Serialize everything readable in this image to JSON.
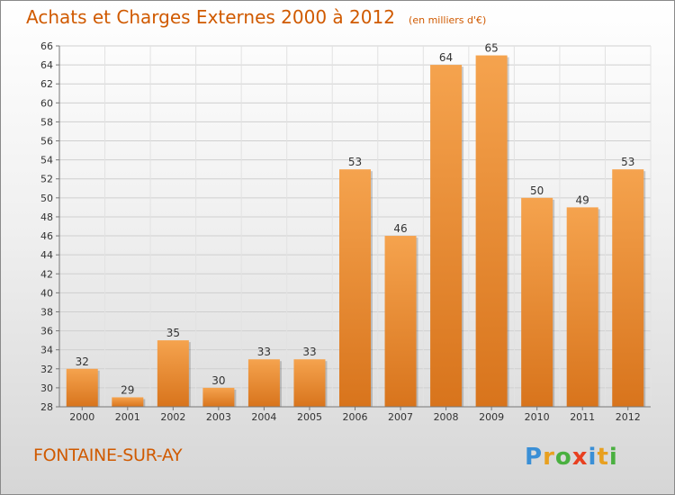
{
  "header": {
    "title": "Achats et Charges Externes 2000 à 2012",
    "subtitle": "(en milliers d'€)"
  },
  "footer": {
    "commune": "FONTAINE-SUR-AY",
    "logo_letters": [
      "P",
      "r",
      "o",
      "x",
      "i",
      "t",
      "i"
    ],
    "logo_colors": [
      "#3a8fd6",
      "#e8a020",
      "#4ab040",
      "#e84020",
      "#3a8fd6",
      "#e8a020",
      "#4ab040"
    ]
  },
  "chart_data": {
    "type": "bar",
    "title": "Achats et Charges Externes 2000 à 2012",
    "subtitle": "(en milliers d'€)",
    "categories": [
      "2000",
      "2001",
      "2002",
      "2003",
      "2004",
      "2005",
      "2006",
      "2007",
      "2008",
      "2009",
      "2010",
      "2011",
      "2012"
    ],
    "values": [
      32,
      29,
      35,
      30,
      33,
      33,
      53,
      46,
      64,
      65,
      50,
      49,
      53
    ],
    "ylim": [
      28,
      66
    ],
    "yticks": [
      28,
      30,
      32,
      34,
      36,
      38,
      40,
      42,
      44,
      46,
      48,
      50,
      52,
      54,
      56,
      58,
      60,
      62,
      64,
      66
    ],
    "grid": true,
    "bar_color_light": "#f5a34e",
    "bar_color_dark": "#d8741c"
  }
}
